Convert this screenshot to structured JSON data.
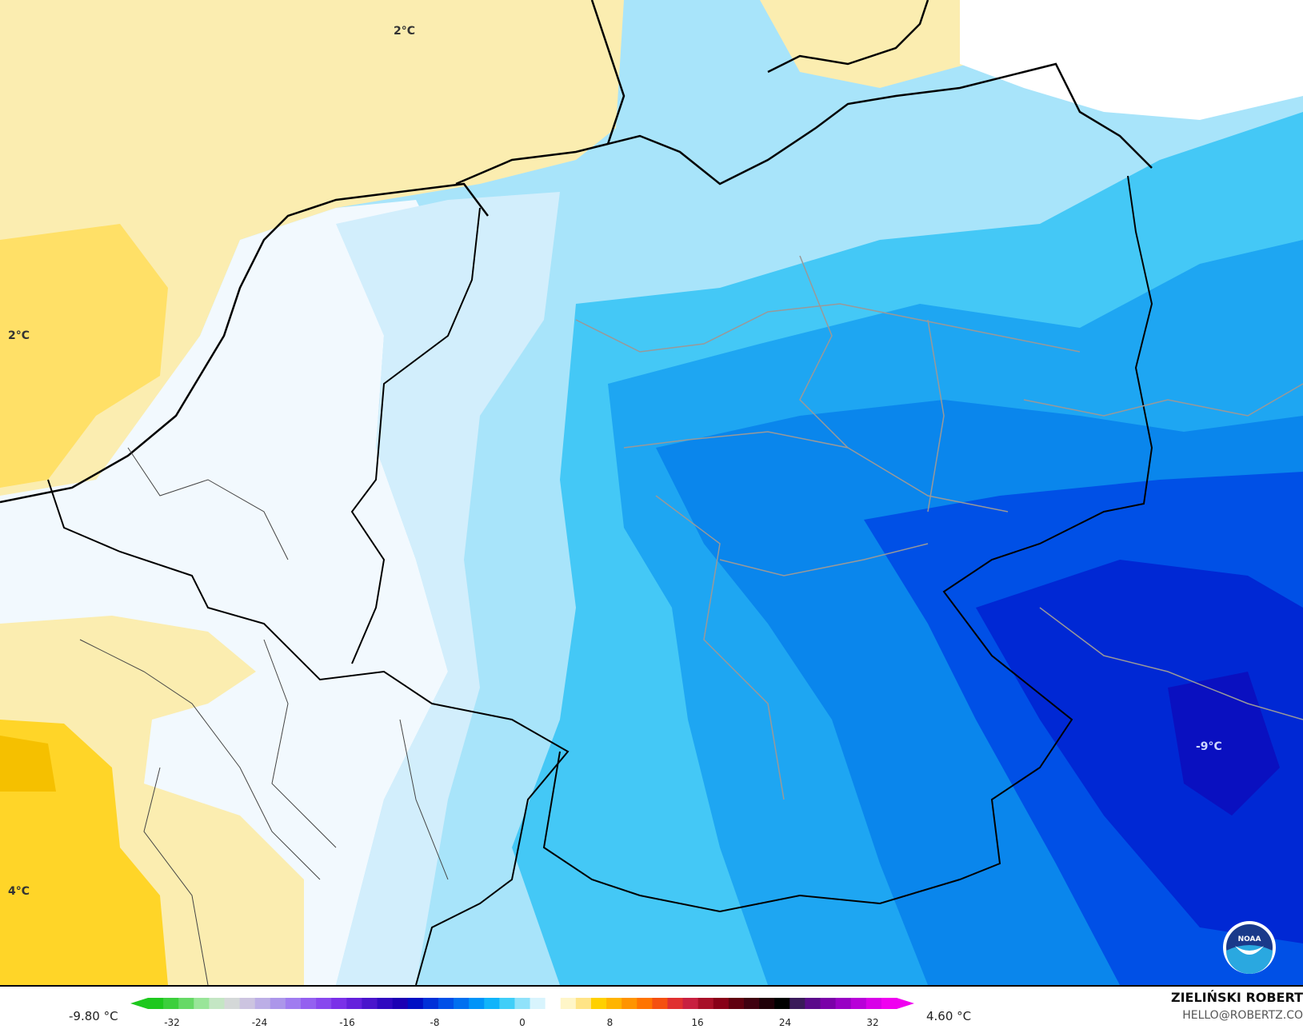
{
  "map": {
    "labels": [
      {
        "text": "2°C",
        "place": "north-sea"
      },
      {
        "text": "2°C",
        "place": "west-coast"
      },
      {
        "text": "4°C",
        "place": "southwest"
      },
      {
        "text": "-9°C",
        "place": "southeast"
      }
    ],
    "logo": "NOAA"
  },
  "legend": {
    "min_value": "-9.80 °C",
    "max_value": "4.60 °C",
    "ticks": [
      "-32",
      "-24",
      "-16",
      "-8",
      "0",
      "8",
      "16",
      "24",
      "32"
    ],
    "colors": [
      "#1ec81e",
      "#3ccf3c",
      "#66d966",
      "#99e599",
      "#c4e6c4",
      "#d4d8d8",
      "#ccc4e0",
      "#bcaee6",
      "#ac96ea",
      "#a07cf0",
      "#9460f0",
      "#8848ee",
      "#7a30e8",
      "#6420dc",
      "#4a14cc",
      "#3008c0",
      "#1c00b4",
      "#0010c4",
      "#0030d8",
      "#0050e8",
      "#0070f0",
      "#0094f8",
      "#10b4fa",
      "#40cef8",
      "#90e2fa",
      "#d8f4fd",
      "#ffffff",
      "#fff6c8",
      "#ffe486",
      "#ffd000",
      "#ffb400",
      "#ff9400",
      "#ff7400",
      "#f55010",
      "#e03030",
      "#c82040",
      "#a81028",
      "#880018",
      "#600010",
      "#400010",
      "#200008",
      "#000000",
      "#3a1a5a",
      "#5a0a8a",
      "#7a00a8",
      "#9800c4",
      "#b800d8",
      "#d800e8",
      "#f000f0"
    ]
  },
  "credits": {
    "author": "ZIELIŃSKI ROBERT",
    "email": "HELLO@ROBERTZ.CO"
  }
}
